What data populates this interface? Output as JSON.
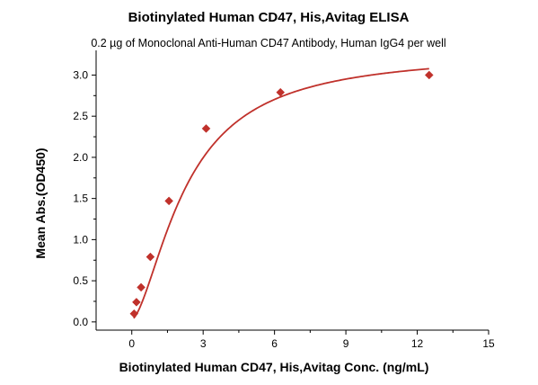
{
  "chart_data": {
    "type": "scatter",
    "title": "Biotinylated Human CD47, His,Avitag ELISA",
    "subtitle": "0.2 µg of Monoclonal Anti-Human CD47 Antibody, Human IgG4 per well",
    "xlabel": "Biotinylated Human CD47, His,Avitag Conc. (ng/mL)",
    "ylabel": "Mean Abs.(OD450)",
    "xlim": [
      -1.5,
      15
    ],
    "ylim": [
      -0.1,
      3.3
    ],
    "xticks": [
      0,
      3,
      6,
      9,
      12,
      15
    ],
    "yticks": [
      0.0,
      0.5,
      1.0,
      1.5,
      2.0,
      2.5,
      3.0
    ],
    "xtick_labels": [
      "0",
      "3",
      "6",
      "9",
      "12",
      "15"
    ],
    "ytick_labels": [
      "0.0",
      "0.5",
      "1.0",
      "1.5",
      "2.0",
      "2.5",
      "3.0"
    ],
    "grid": false,
    "series": [
      {
        "marker": "diamond",
        "color": "#c0312b",
        "x": [
          0.098,
          0.195,
          0.391,
          0.781,
          1.563,
          3.125,
          6.25,
          12.5
        ],
        "y": [
          0.1,
          0.24,
          0.42,
          0.79,
          1.47,
          2.35,
          2.79,
          3.0
        ]
      }
    ],
    "fit": {
      "model": "4PL",
      "color": "#c0312b",
      "bottom": 0.03,
      "top": 3.28,
      "ec50": 2.3,
      "hill": 1.6,
      "x_range": [
        0.08,
        12.5
      ]
    }
  }
}
